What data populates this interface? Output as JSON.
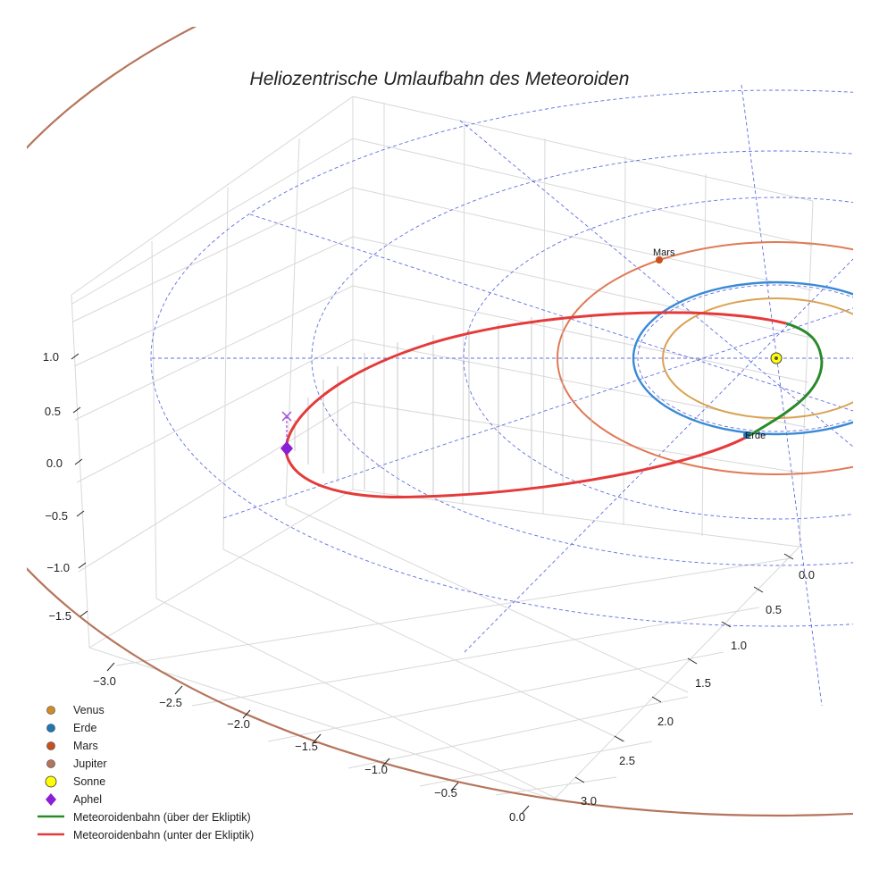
{
  "chart_data": {
    "type": "line3d",
    "title": "Heliozentrische Umlaufbahn des Meteoroiden",
    "axes": {
      "x": {
        "ticks": [
          "−3.0",
          "−2.5",
          "−2.0",
          "−1.5",
          "−1.0",
          "−0.5",
          "0.0"
        ],
        "range": [
          -3.2,
          0.0
        ]
      },
      "y": {
        "ticks": [
          "0.0",
          "0.5",
          "1.0",
          "1.5",
          "2.0",
          "2.5",
          "3.0"
        ],
        "range": [
          0.0,
          3.2
        ]
      },
      "z": {
        "ticks": [
          "−1.5",
          "−1.0",
          "−0.5",
          "0.0",
          "0.5",
          "1.0"
        ],
        "range": [
          -1.8,
          1.3
        ]
      }
    },
    "bodies": [
      {
        "name": "Venus",
        "color": "#d18a26",
        "orbit_radius_au": 0.72
      },
      {
        "name": "Erde",
        "color": "#1f77b4",
        "orbit_radius_au": 1.0,
        "label": "Erde"
      },
      {
        "name": "Mars",
        "color": "#c8501e",
        "orbit_radius_au": 1.52,
        "label": "Mars"
      },
      {
        "name": "Jupiter",
        "color": "#b5755b",
        "orbit_radius_au": 5.2
      },
      {
        "name": "Sonne",
        "color": "#ffff00"
      }
    ],
    "meteoroid": {
      "aphel_color": "#8a1fd6",
      "above_color": "#2a8a2a",
      "below_color": "#e53a3a"
    },
    "legend": [
      {
        "label": "Venus",
        "marker": "circle",
        "color": "#d18a26"
      },
      {
        "label": "Erde",
        "marker": "circle",
        "color": "#1f77b4"
      },
      {
        "label": "Mars",
        "marker": "circle",
        "color": "#c8501e"
      },
      {
        "label": "Jupiter",
        "marker": "circle",
        "color": "#b5755b"
      },
      {
        "label": "Sonne",
        "marker": "circle-large",
        "color": "#ffff00"
      },
      {
        "label": "Aphel",
        "marker": "diamond",
        "color": "#8a1fd6"
      },
      {
        "label": "Meteoroidenbahn (über der Ekliptik)",
        "marker": "line",
        "color": "#2a8a2a"
      },
      {
        "label": "Meteoroidenbahn (unter der Ekliptik)",
        "marker": "line",
        "color": "#e53a3a"
      }
    ]
  }
}
